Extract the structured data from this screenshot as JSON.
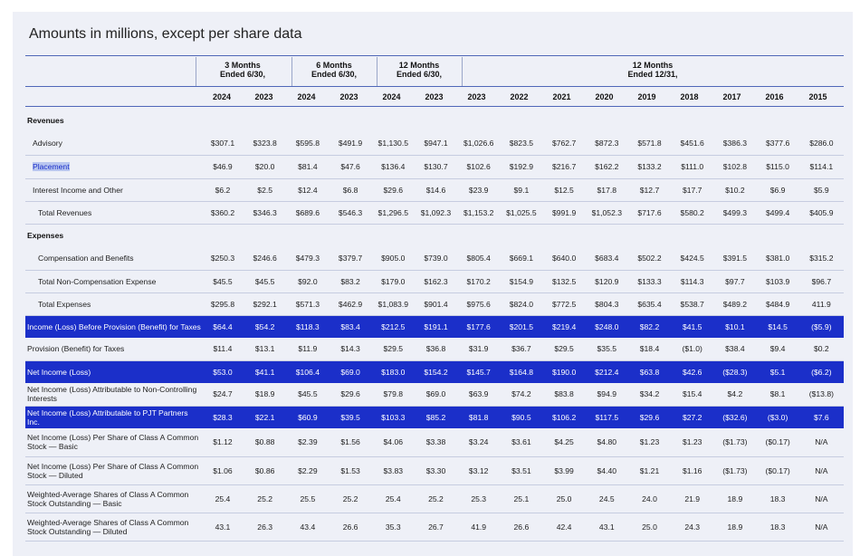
{
  "title": "Amounts in millions, except per share data",
  "groups": [
    {
      "line1": "3 Months",
      "line2": "Ended 6/30,"
    },
    {
      "line1": "6 Months",
      "line2": "Ended 6/30,"
    },
    {
      "line1": "12 Months",
      "line2": "Ended 6/30,"
    },
    {
      "line1": "12 Months",
      "line2": "Ended 12/31,"
    }
  ],
  "years": [
    "2024",
    "2023",
    "2024",
    "2023",
    "2024",
    "2023",
    "2023",
    "2022",
    "2021",
    "2020",
    "2019",
    "2018",
    "2017",
    "2016",
    "2015"
  ],
  "rows": [
    {
      "label": "Revenues",
      "style": "section"
    },
    {
      "label": "Advisory",
      "indent": 1,
      "values": [
        "$307.1",
        "$323.8",
        "$595.8",
        "$491.9",
        "$1,130.5",
        "$947.1",
        "$1,026.6",
        "$823.5",
        "$762.7",
        "$872.3",
        "$571.8",
        "$451.6",
        "$386.3",
        "$377.6",
        "$286.0"
      ]
    },
    {
      "label": "Placement",
      "indent": 1,
      "selected": true,
      "values": [
        "$46.9",
        "$20.0",
        "$81.4",
        "$47.6",
        "$136.4",
        "$130.7",
        "$102.6",
        "$192.9",
        "$216.7",
        "$162.2",
        "$133.2",
        "$111.0",
        "$102.8",
        "$115.0",
        "$114.1"
      ]
    },
    {
      "label": "Interest Income and Other",
      "indent": 1,
      "values": [
        "$6.2",
        "$2.5",
        "$12.4",
        "$6.8",
        "$29.6",
        "$14.6",
        "$23.9",
        "$9.1",
        "$12.5",
        "$17.8",
        "$12.7",
        "$17.7",
        "$10.2",
        "$6.9",
        "$5.9"
      ]
    },
    {
      "label": "Total Revenues",
      "indent": 2,
      "values": [
        "$360.2",
        "$346.3",
        "$689.6",
        "$546.3",
        "$1,296.5",
        "$1,092.3",
        "$1,153.2",
        "$1,025.5",
        "$991.9",
        "$1,052.3",
        "$717.6",
        "$580.2",
        "$499.3",
        "$499.4",
        "$405.9"
      ]
    },
    {
      "label": "Expenses",
      "style": "section"
    },
    {
      "label": "Compensation and Benefits",
      "indent": 2,
      "values": [
        "$250.3",
        "$246.6",
        "$479.3",
        "$379.7",
        "$905.0",
        "$739.0",
        "$805.4",
        "$669.1",
        "$640.0",
        "$683.4",
        "$502.2",
        "$424.5",
        "$391.5",
        "$381.0",
        "$315.2"
      ]
    },
    {
      "label": "Total Non-Compensation Expense",
      "indent": 2,
      "values": [
        "$45.5",
        "$45.5",
        "$92.0",
        "$83.2",
        "$179.0",
        "$162.3",
        "$170.2",
        "$154.9",
        "$132.5",
        "$120.9",
        "$133.3",
        "$114.3",
        "$97.7",
        "$103.9",
        "$96.7"
      ]
    },
    {
      "label": "Total Expenses",
      "indent": 3,
      "values": [
        "$295.8",
        "$292.1",
        "$571.3",
        "$462.9",
        "$1,083.9",
        "$901.4",
        "$975.6",
        "$824.0",
        "$772.5",
        "$804.3",
        "$635.4",
        "$538.7",
        "$489.2",
        "$484.9",
        "411.9"
      ]
    },
    {
      "label": "Income (Loss) Before Provision (Benefit) for Taxes",
      "style": "highlight",
      "values": [
        "$64.4",
        "$54.2",
        "$118.3",
        "$83.4",
        "$212.5",
        "$191.1",
        "$177.6",
        "$201.5",
        "$219.4",
        "$248.0",
        "$82.2",
        "$41.5",
        "$10.1",
        "$14.5",
        "($5.9)"
      ]
    },
    {
      "label": "Provision (Benefit) for Taxes",
      "values": [
        "$11.4",
        "$13.1",
        "$11.9",
        "$14.3",
        "$29.5",
        "$36.8",
        "$31.9",
        "$36.7",
        "$29.5",
        "$35.5",
        "$18.4",
        "($1.0)",
        "$38.4",
        "$9.4",
        "$0.2"
      ]
    },
    {
      "label": "Net Income (Loss)",
      "style": "highlight",
      "values": [
        "$53.0",
        "$41.1",
        "$106.4",
        "$69.0",
        "$183.0",
        "$154.2",
        "$145.7",
        "$164.8",
        "$190.0",
        "$212.4",
        "$63.8",
        "$42.6",
        "($28.3)",
        "$5.1",
        "($6.2)"
      ]
    },
    {
      "label": "Net Income (Loss) Attributable to Non-Controlling Interests",
      "values": [
        "$24.7",
        "$18.9",
        "$45.5",
        "$29.6",
        "$79.8",
        "$69.0",
        "$63.9",
        "$74.2",
        "$83.8",
        "$94.9",
        "$34.2",
        "$15.4",
        "$4.2",
        "$8.1",
        "($13.8)"
      ]
    },
    {
      "label": "Net Income (Loss) Attributable to PJT Partners Inc.",
      "style": "highlight",
      "values": [
        "$28.3",
        "$22.1",
        "$60.9",
        "$39.5",
        "$103.3",
        "$85.2",
        "$81.8",
        "$90.5",
        "$106.2",
        "$117.5",
        "$29.6",
        "$27.2",
        "($32.6)",
        "($3.0)",
        "$7.6"
      ]
    },
    {
      "label": "Net Income (Loss) Per Share of Class A Common Stock — Basic",
      "values": [
        "$1.12",
        "$0.88",
        "$2.39",
        "$1.56",
        "$4.06",
        "$3.38",
        "$3.24",
        "$3.61",
        "$4.25",
        "$4.80",
        "$1.23",
        "$1.23",
        "($1.73)",
        "($0.17)",
        "N/A"
      ]
    },
    {
      "label": "Net Income (Loss) Per Share of Class A Common Stock — Diluted",
      "values": [
        "$1.06",
        "$0.86",
        "$2.29",
        "$1.53",
        "$3.83",
        "$3.30",
        "$3.12",
        "$3.51",
        "$3.99",
        "$4.40",
        "$1.21",
        "$1.16",
        "($1.73)",
        "($0.17)",
        "N/A"
      ]
    },
    {
      "label": "Weighted-Average Shares of Class A Common Stock Outstanding — Basic",
      "values": [
        "25.4",
        "25.2",
        "25.5",
        "25.2",
        "25.4",
        "25.2",
        "25.3",
        "25.1",
        "25.0",
        "24.5",
        "24.0",
        "21.9",
        "18.9",
        "18.3",
        "N/A"
      ]
    },
    {
      "label": "Weighted-Average Shares of Class A Common Stock Outstanding — Diluted",
      "values": [
        "43.1",
        "26.3",
        "43.4",
        "26.6",
        "35.3",
        "26.7",
        "41.9",
        "26.6",
        "42.4",
        "43.1",
        "25.0",
        "24.3",
        "18.9",
        "18.3",
        "N/A"
      ]
    }
  ]
}
